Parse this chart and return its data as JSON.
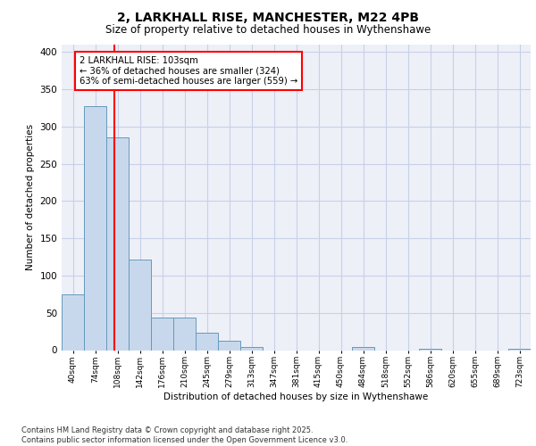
{
  "title1": "2, LARKHALL RISE, MANCHESTER, M22 4PB",
  "title2": "Size of property relative to detached houses in Wythenshawe",
  "xlabel": "Distribution of detached houses by size in Wythenshawe",
  "ylabel": "Number of detached properties",
  "bar_labels": [
    "40sqm",
    "74sqm",
    "108sqm",
    "142sqm",
    "176sqm",
    "210sqm",
    "245sqm",
    "279sqm",
    "313sqm",
    "347sqm",
    "381sqm",
    "415sqm",
    "450sqm",
    "484sqm",
    "518sqm",
    "552sqm",
    "586sqm",
    "620sqm",
    "655sqm",
    "689sqm",
    "723sqm"
  ],
  "bar_values": [
    75,
    328,
    285,
    121,
    44,
    44,
    23,
    13,
    4,
    0,
    0,
    0,
    0,
    4,
    0,
    0,
    2,
    0,
    0,
    0,
    2
  ],
  "bar_color": "#c8d8ec",
  "bar_edge_color": "#6699bb",
  "grid_color": "#c8d0e8",
  "background_color": "#eef0f8",
  "red_line_x": 1.85,
  "annotation_line1": "2 LARKHALL RISE: 103sqm",
  "annotation_line2": "← 36% of detached houses are smaller (324)",
  "annotation_line3": "63% of semi-detached houses are larger (559) →",
  "annotation_box_color": "white",
  "annotation_box_edge": "red",
  "footer_text": "Contains HM Land Registry data © Crown copyright and database right 2025.\nContains public sector information licensed under the Open Government Licence v3.0.",
  "ylim": [
    0,
    410
  ],
  "yticks": [
    0,
    50,
    100,
    150,
    200,
    250,
    300,
    350,
    400
  ]
}
